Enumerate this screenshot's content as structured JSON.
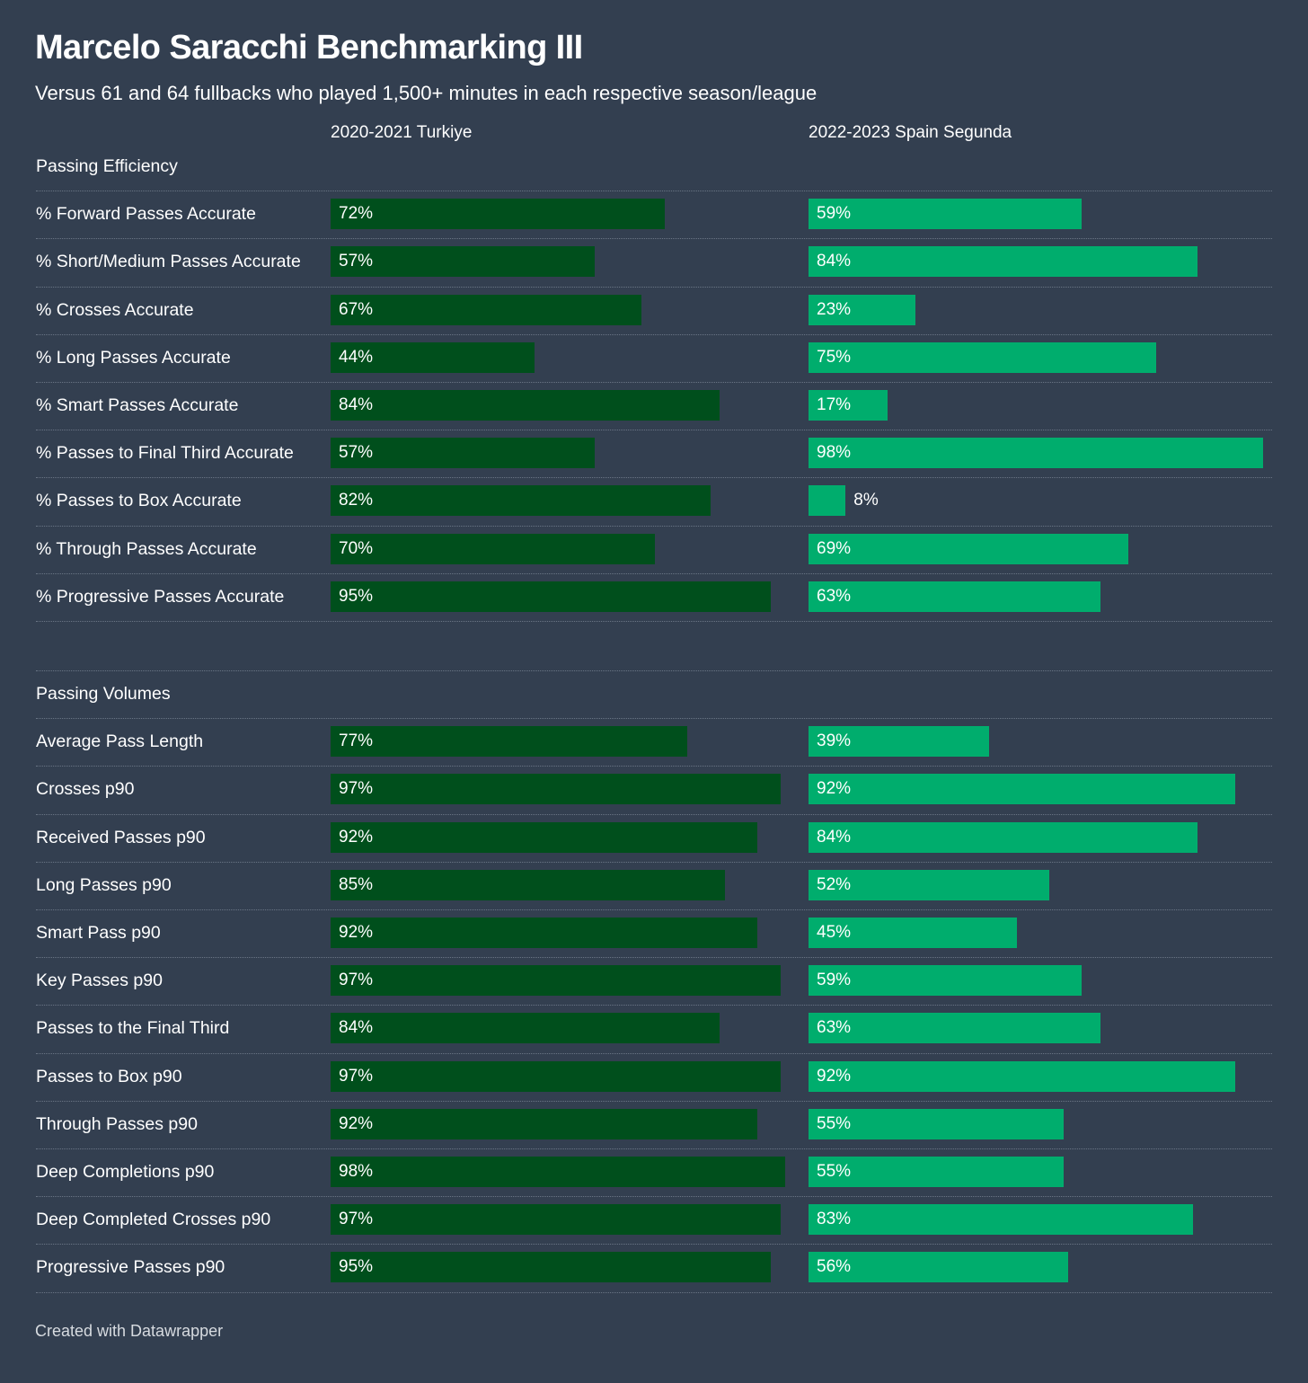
{
  "title": "Marcelo Saracchi Benchmarking III",
  "subtitle": "Versus 61 and 64 fullbacks who played 1,500+ minutes in each respective season/league",
  "footer": "Created with Datawrapper",
  "colors": {
    "background": "#333f50",
    "series_a": "#004f1c",
    "series_b": "#00ad6d"
  },
  "chart_data": {
    "type": "bar",
    "orientation": "horizontal",
    "unit": "%",
    "xlim": [
      0,
      100
    ],
    "series_names": [
      "2020-2021 Turkiye",
      "2022-2023 Spain Segunda"
    ],
    "groups": [
      {
        "name": "Passing Efficiency",
        "rows": [
          {
            "label": "% Forward Passes Accurate",
            "values": [
              72,
              59
            ]
          },
          {
            "label": "% Short/Medium Passes Accurate",
            "values": [
              57,
              84
            ]
          },
          {
            "label": "% Crosses Accurate",
            "values": [
              67,
              23
            ]
          },
          {
            "label": "% Long Passes Accurate",
            "values": [
              44,
              75
            ]
          },
          {
            "label": "% Smart Passes Accurate",
            "values": [
              84,
              17
            ]
          },
          {
            "label": "% Passes to Final Third Accurate",
            "values": [
              57,
              98
            ]
          },
          {
            "label": "% Passes to Box Accurate",
            "values": [
              82,
              8
            ]
          },
          {
            "label": "% Through Passes Accurate",
            "values": [
              70,
              69
            ]
          },
          {
            "label": "% Progressive Passes Accurate",
            "values": [
              95,
              63
            ]
          }
        ]
      },
      {
        "name": "Passing Volumes",
        "rows": [
          {
            "label": "Average Pass Length",
            "values": [
              77,
              39
            ]
          },
          {
            "label": "Crosses p90",
            "values": [
              97,
              92
            ]
          },
          {
            "label": "Received Passes p90",
            "values": [
              92,
              84
            ]
          },
          {
            "label": "Long Passes p90",
            "values": [
              85,
              52
            ]
          },
          {
            "label": "Smart Pass p90",
            "values": [
              92,
              45
            ]
          },
          {
            "label": "Key Passes p90",
            "values": [
              97,
              59
            ]
          },
          {
            "label": "Passes to the Final Third",
            "values": [
              84,
              63
            ]
          },
          {
            "label": "Passes to Box p90",
            "values": [
              97,
              92
            ]
          },
          {
            "label": "Through Passes p90",
            "values": [
              92,
              55
            ]
          },
          {
            "label": "Deep Completions p90",
            "values": [
              98,
              55
            ]
          },
          {
            "label": "Deep Completed Crosses p90",
            "values": [
              97,
              83
            ]
          },
          {
            "label": "Progressive Passes p90",
            "values": [
              95,
              56
            ]
          }
        ]
      }
    ]
  }
}
